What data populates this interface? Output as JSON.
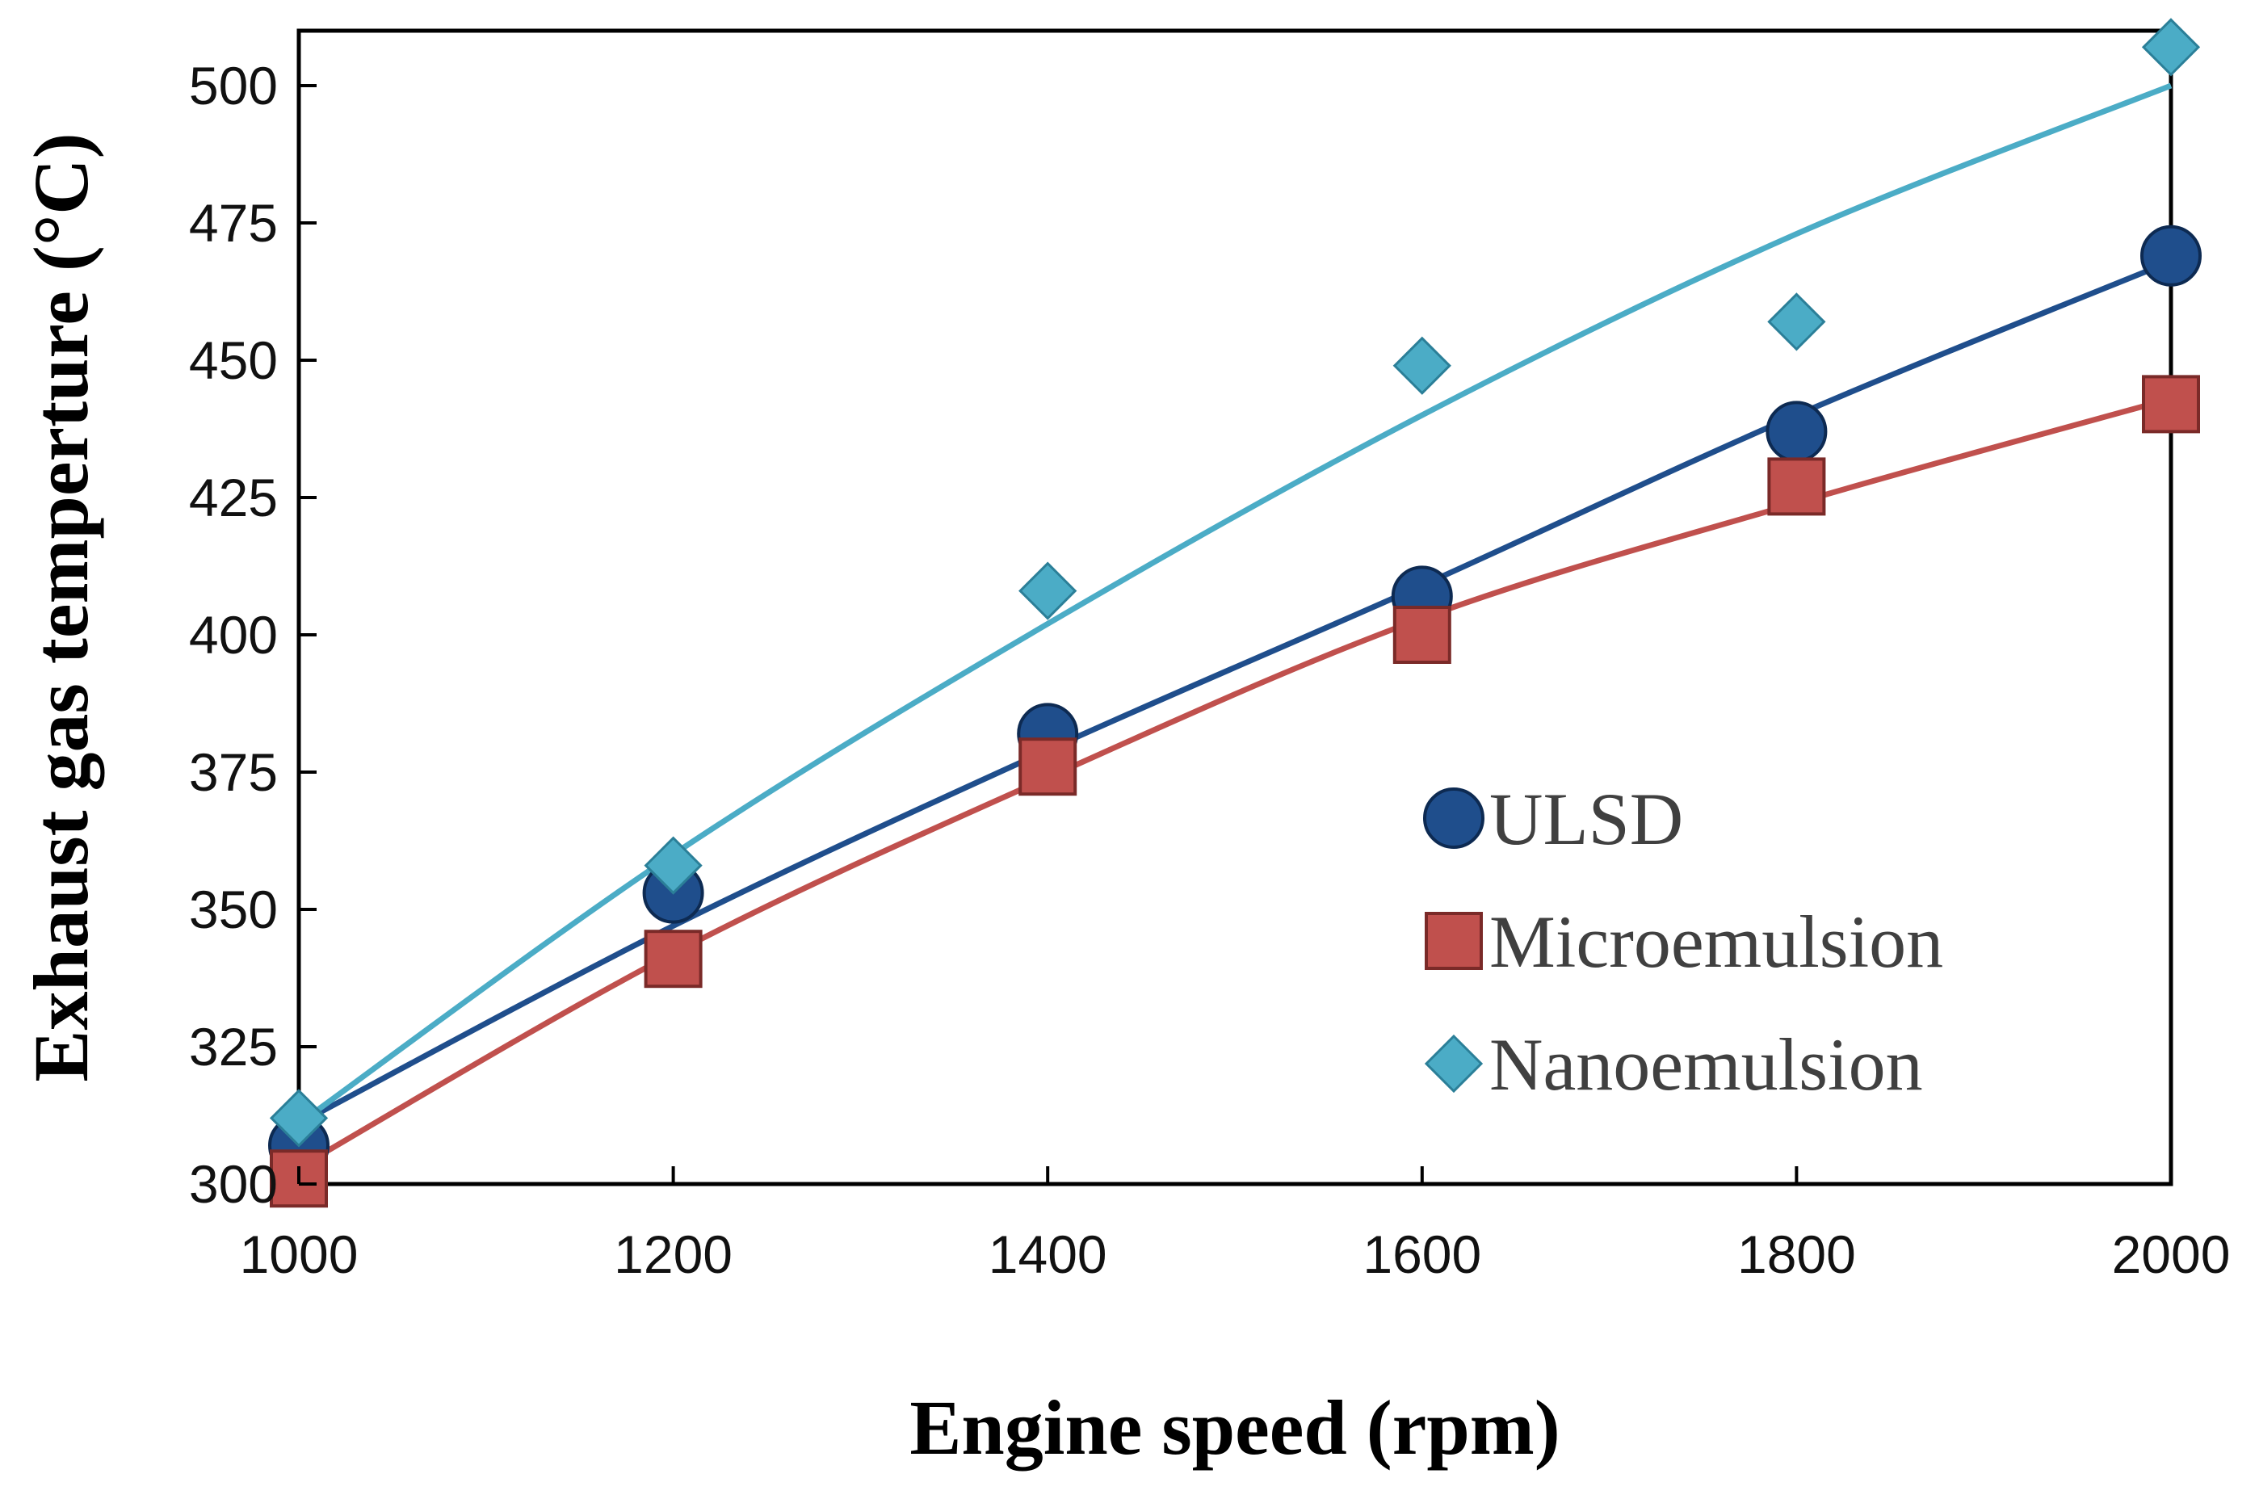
{
  "chart_data": {
    "type": "scatter",
    "title": "",
    "xlabel": "Engine speed  (rpm)",
    "ylabel": "Exhaust gas temperture (°C)",
    "xlim": [
      1000,
      2000
    ],
    "ylim": [
      300,
      510
    ],
    "xticks": [
      1000,
      1200,
      1400,
      1600,
      1800,
      2000
    ],
    "yticks": [
      300,
      325,
      350,
      375,
      400,
      425,
      450,
      475,
      500
    ],
    "grid": false,
    "legend_position": "center-right",
    "series": [
      {
        "name": "ULSD",
        "marker": "circle",
        "color": "#1f4e8c",
        "x": [
          1000,
          1200,
          1400,
          1600,
          1800,
          2000
        ],
        "y": [
          307,
          353,
          382,
          407,
          437,
          469
        ],
        "trendline": {
          "x": [
            1000,
            1200,
            1400,
            1600,
            1800,
            2000
          ],
          "y": [
            311,
            347,
            379,
            409,
            440,
            468
          ]
        }
      },
      {
        "name": "Microemulsion",
        "marker": "square",
        "color": "#c0504d",
        "x": [
          1000,
          1200,
          1400,
          1600,
          1800,
          2000
        ],
        "y": [
          301,
          341,
          376,
          400,
          427,
          442
        ],
        "trendline": {
          "x": [
            1000,
            1200,
            1400,
            1600,
            1800,
            2000
          ],
          "y": [
            303,
            342,
            374,
            403,
            424,
            443
          ]
        }
      },
      {
        "name": "Nanoemulsion",
        "marker": "diamond",
        "color": "#4bacc6",
        "x": [
          1000,
          1200,
          1400,
          1600,
          1800,
          2000
        ],
        "y": [
          312,
          358,
          408,
          449,
          457,
          507
        ],
        "trendline": {
          "x": [
            1000,
            1200,
            1400,
            1600,
            1800,
            2000
          ],
          "y": [
            311,
            360,
            402,
            440,
            473,
            500
          ]
        }
      }
    ]
  }
}
